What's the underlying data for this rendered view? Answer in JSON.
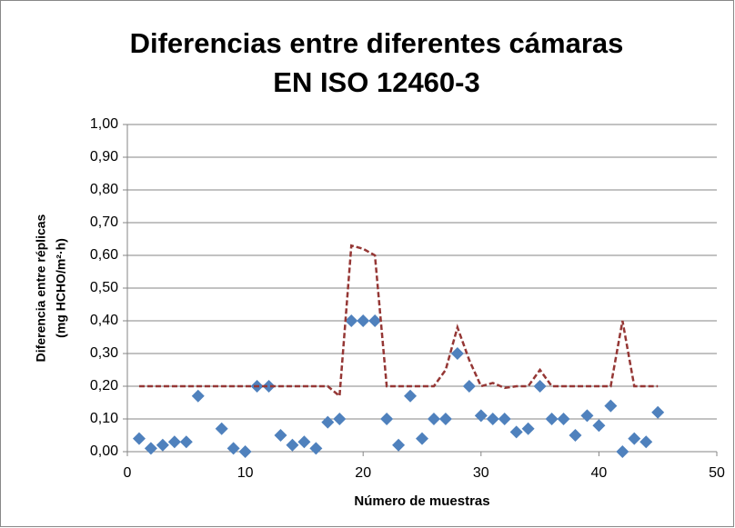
{
  "chart_data": {
    "type": "scatter",
    "title": [
      "Diferencias entre diferentes cámaras",
      "EN ISO 12460-3"
    ],
    "xlabel": "Número de muestras",
    "ylabel": [
      "Diferencia entre réplicas",
      "(mg HCHO/m²·h)"
    ],
    "xlim": [
      0,
      50
    ],
    "xticks": [
      0,
      10,
      20,
      30,
      40,
      50
    ],
    "ylim": [
      0,
      1
    ],
    "yticks": [
      {
        "value": 0,
        "label": "0,00"
      },
      {
        "value": 0.1,
        "label": "0,10"
      },
      {
        "value": 0.2,
        "label": "0,20"
      },
      {
        "value": 0.3,
        "label": "0,30"
      },
      {
        "value": 0.4,
        "label": "0,40"
      },
      {
        "value": 0.5,
        "label": "0,50"
      },
      {
        "value": 0.6,
        "label": "0,60"
      },
      {
        "value": 0.7,
        "label": "0,70"
      },
      {
        "value": 0.8,
        "label": "0,80"
      },
      {
        "value": 0.9,
        "label": "0,90"
      },
      {
        "value": 1,
        "label": "1,00"
      }
    ],
    "grid": true,
    "series": [
      {
        "kind": "markers",
        "color": "#4f81bd",
        "x": [
          1,
          2,
          3,
          4,
          5,
          6,
          8,
          9,
          10,
          11,
          12,
          13,
          14,
          15,
          16,
          17,
          18,
          19,
          20,
          21,
          22,
          23,
          24,
          25,
          26,
          27,
          28,
          29,
          30,
          31,
          32,
          33,
          34,
          35,
          36,
          37,
          38,
          39,
          40,
          41,
          42,
          43,
          44,
          45
        ],
        "values": [
          0.04,
          0.01,
          0.02,
          0.03,
          0.03,
          0.17,
          0.07,
          0.01,
          0.0,
          0.2,
          0.2,
          0.05,
          0.02,
          0.03,
          0.01,
          0.09,
          0.1,
          0.4,
          0.4,
          0.4,
          0.1,
          0.02,
          0.17,
          0.04,
          0.1,
          0.1,
          0.3,
          0.2,
          0.11,
          0.1,
          0.1,
          0.06,
          0.07,
          0.2,
          0.1,
          0.1,
          0.05,
          0.11,
          0.08,
          0.14,
          0.0,
          0.04,
          0.03,
          0.12
        ]
      },
      {
        "kind": "dashed-line",
        "color": "#953735",
        "x": [
          1,
          2,
          3,
          4,
          5,
          6,
          7,
          8,
          9,
          10,
          11,
          12,
          13,
          14,
          15,
          16,
          17,
          18,
          19,
          20,
          21,
          22,
          23,
          24,
          25,
          26,
          27,
          28,
          29,
          30,
          31,
          32,
          33,
          34,
          35,
          36,
          37,
          38,
          39,
          40,
          41,
          42,
          43,
          44,
          45
        ],
        "values": [
          0.2,
          0.2,
          0.2,
          0.2,
          0.2,
          0.2,
          0.2,
          0.2,
          0.2,
          0.2,
          0.2,
          0.2,
          0.2,
          0.2,
          0.2,
          0.2,
          0.2,
          0.17,
          0.63,
          0.62,
          0.6,
          0.2,
          0.2,
          0.2,
          0.2,
          0.2,
          0.25,
          0.38,
          0.28,
          0.2,
          0.21,
          0.195,
          0.2,
          0.2,
          0.25,
          0.2,
          0.2,
          0.2,
          0.2,
          0.2,
          0.2,
          0.4,
          0.2,
          0.2,
          0.2
        ]
      }
    ]
  }
}
